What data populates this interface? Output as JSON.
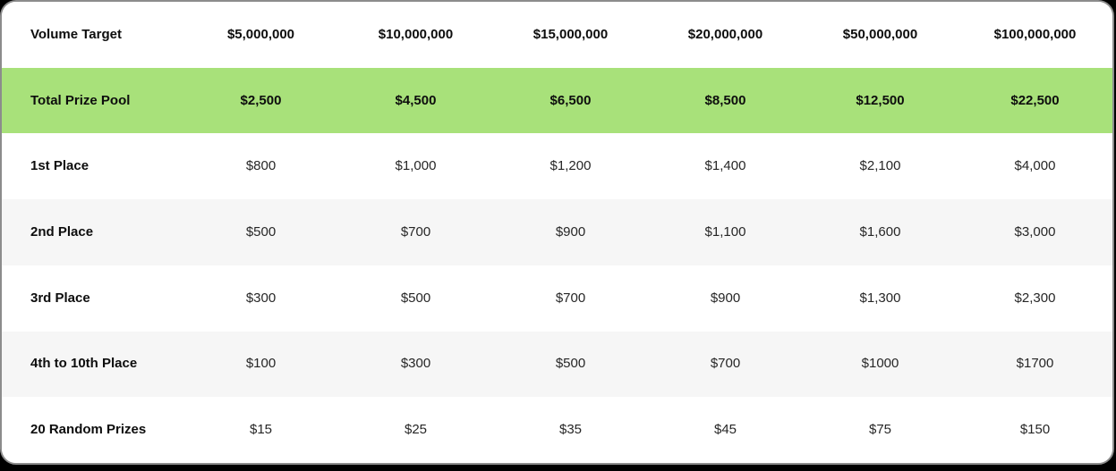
{
  "colors": {
    "page_background": "#000000",
    "card_background": "#ffffff",
    "card_border": "#8c8c8c",
    "highlight_green": "#a8e17a",
    "alt_row_gray": "#f6f6f6",
    "text_bold": "#0d0d0d",
    "text_regular": "#262626"
  },
  "chart_data": {
    "type": "table",
    "header": {
      "label": "Volume Target",
      "values": [
        "$5,000,000",
        "$10,000,000",
        "$15,000,000",
        "$20,000,000",
        "$50,000,000",
        "$100,000,000"
      ]
    },
    "rows": [
      {
        "label": "Total Prize Pool",
        "highlight": true,
        "values": [
          "$2,500",
          "$4,500",
          "$6,500",
          "$8,500",
          "$12,500",
          "$22,500"
        ]
      },
      {
        "label": "1st Place",
        "highlight": false,
        "values": [
          "$800",
          "$1,000",
          "$1,200",
          "$1,400",
          "$2,100",
          "$4,000"
        ]
      },
      {
        "label": "2nd Place",
        "highlight": false,
        "values": [
          "$500",
          "$700",
          "$900",
          "$1,100",
          "$1,600",
          "$3,000"
        ]
      },
      {
        "label": "3rd Place",
        "highlight": false,
        "values": [
          "$300",
          "$500",
          "$700",
          "$900",
          "$1,300",
          "$2,300"
        ]
      },
      {
        "label": "4th to 10th Place",
        "highlight": false,
        "values": [
          "$100",
          "$300",
          "$500",
          "$700",
          "$1000",
          "$1700"
        ]
      },
      {
        "label": "20 Random Prizes",
        "highlight": false,
        "values": [
          "$15",
          "$25",
          "$35",
          "$45",
          "$75",
          "$150"
        ]
      }
    ]
  }
}
